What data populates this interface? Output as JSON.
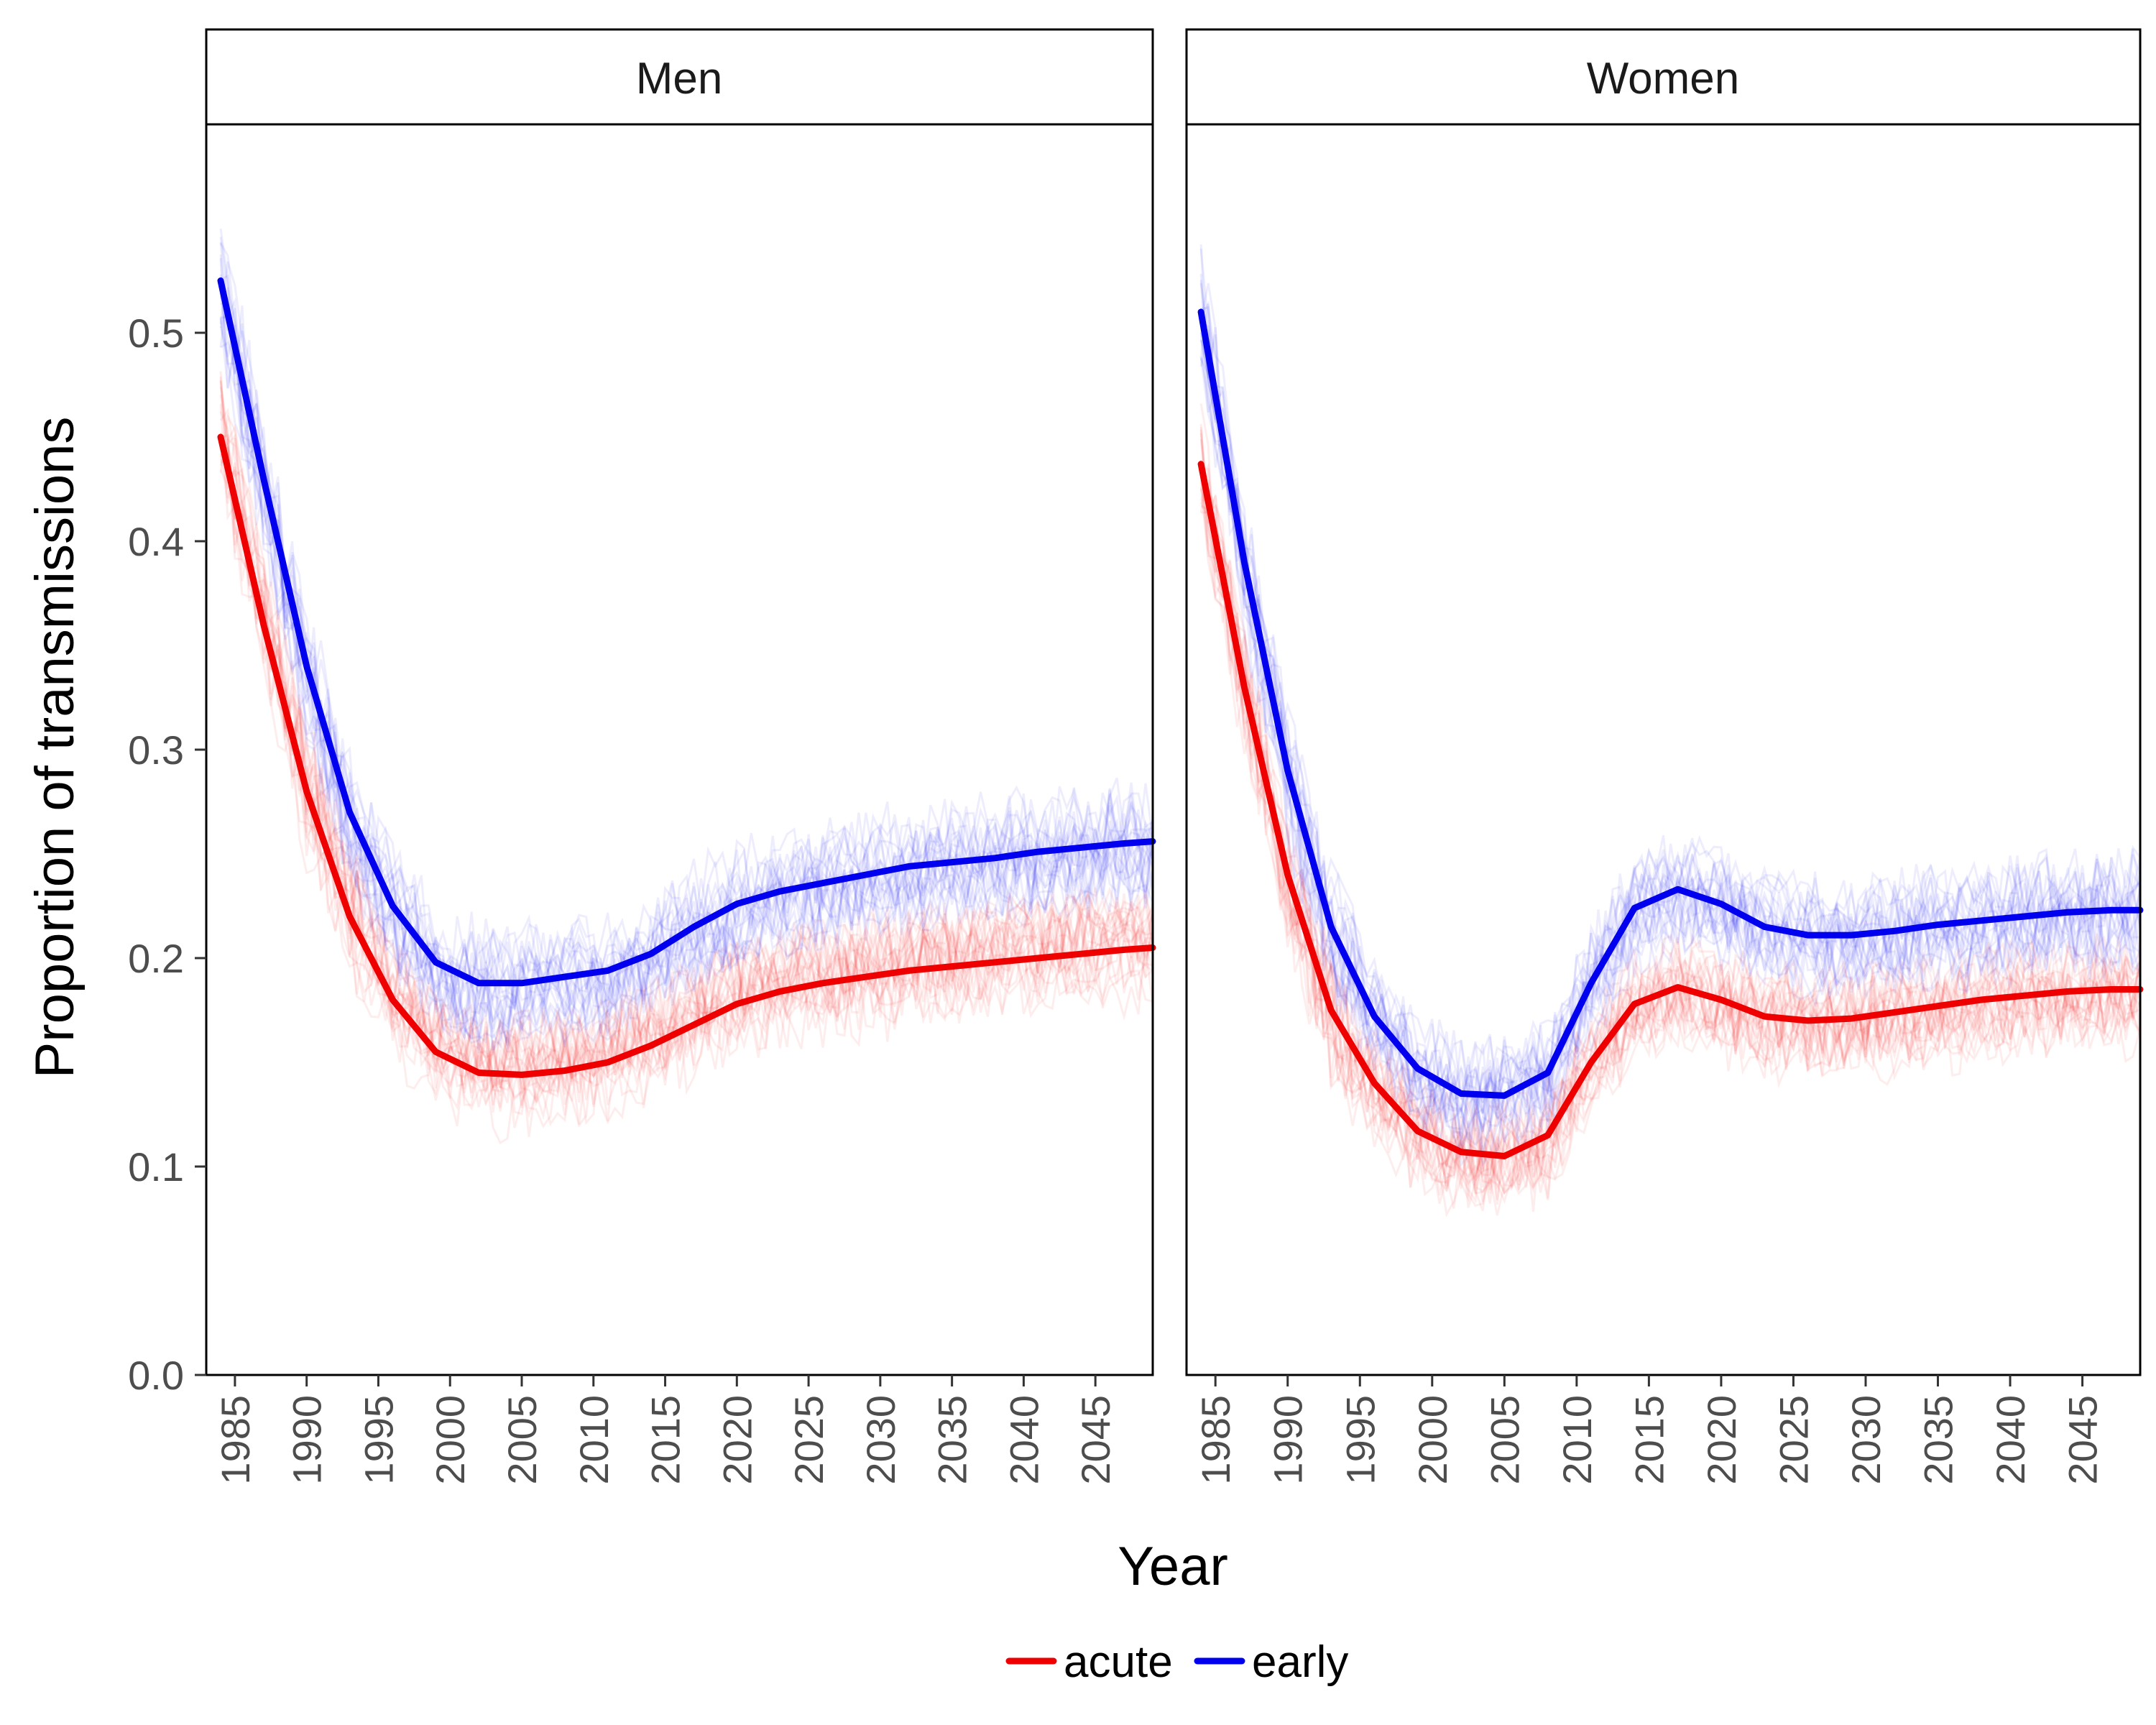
{
  "chart_data": {
    "type": "line",
    "facets": [
      "Men",
      "Women"
    ],
    "xlabel": "Year",
    "ylabel": "Proportion of transmissions",
    "xlim": [
      1983,
      2049
    ],
    "ylim": [
      0,
      0.6
    ],
    "x_ticks": [
      1985,
      1990,
      1995,
      2000,
      2005,
      2010,
      2015,
      2020,
      2025,
      2030,
      2035,
      2040,
      2045
    ],
    "y_ticks": [
      0.0,
      0.1,
      0.2,
      0.3,
      0.4,
      0.5
    ],
    "y_tick_labels": [
      "0.0",
      "0.1",
      "0.2",
      "0.3",
      "0.4",
      "0.5"
    ],
    "legend_position": "bottom",
    "grid": false,
    "x": [
      1984,
      1987,
      1990,
      1993,
      1996,
      1999,
      2002,
      2005,
      2008,
      2011,
      2014,
      2017,
      2020,
      2023,
      2026,
      2029,
      2032,
      2035,
      2038,
      2041,
      2044,
      2047,
      2049
    ],
    "series": [
      {
        "name": "acute",
        "color": "#ee0000",
        "panels": {
          "Men": [
            0.45,
            0.36,
            0.28,
            0.22,
            0.18,
            0.155,
            0.145,
            0.144,
            0.146,
            0.15,
            0.158,
            0.168,
            0.178,
            0.184,
            0.188,
            0.191,
            0.194,
            0.196,
            0.198,
            0.2,
            0.202,
            0.204,
            0.205
          ],
          "Women": [
            0.437,
            0.33,
            0.24,
            0.175,
            0.14,
            0.117,
            0.107,
            0.105,
            0.115,
            0.15,
            0.178,
            0.186,
            0.18,
            0.172,
            0.17,
            0.171,
            0.174,
            0.177,
            0.18,
            0.182,
            0.184,
            0.185,
            0.185
          ]
        }
      },
      {
        "name": "early",
        "color": "#0000ee",
        "panels": {
          "Men": [
            0.525,
            0.43,
            0.34,
            0.27,
            0.225,
            0.198,
            0.188,
            0.188,
            0.191,
            0.194,
            0.202,
            0.215,
            0.226,
            0.232,
            0.236,
            0.24,
            0.244,
            0.246,
            0.248,
            0.251,
            0.253,
            0.255,
            0.256
          ],
          "Women": [
            0.51,
            0.39,
            0.29,
            0.215,
            0.172,
            0.147,
            0.135,
            0.134,
            0.145,
            0.188,
            0.224,
            0.233,
            0.226,
            0.215,
            0.211,
            0.211,
            0.213,
            0.216,
            0.218,
            0.22,
            0.222,
            0.223,
            0.223
          ]
        }
      }
    ]
  }
}
